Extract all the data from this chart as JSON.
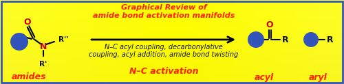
{
  "bg_yellow_light": "#FFFF99",
  "bg_yellow_mid": "#FFFF00",
  "bg_yellow_dark": "#EEDD00",
  "title_line1": "Graphical Review of",
  "title_line2": "amide bond activation manifolds",
  "title_color": "#FF2200",
  "desc_line1": "N–C acyl coupling, decarbonylative",
  "desc_line2": "coupling, acyl addition, amide bond twisting",
  "desc_color": "#111111",
  "activation_label": "N–C activation",
  "activation_color": "#FF2200",
  "amides_label": "amides",
  "amides_color": "#FF2200",
  "acyl_label": "acyl",
  "acyl_color": "#FF2200",
  "aryl_label": "aryl",
  "aryl_color": "#FF2200",
  "ball_color": "#3355BB",
  "arrow_color": "#000000",
  "O_color": "#CC0000",
  "N_color": "#CC0000",
  "R_color": "#111111",
  "border_color": "#3355BB",
  "figwidth": 5.0,
  "figheight": 1.23,
  "dpi": 100
}
